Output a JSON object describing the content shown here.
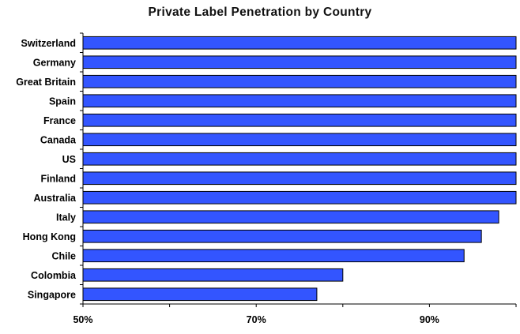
{
  "chart_data": {
    "type": "bar",
    "orientation": "horizontal",
    "title": "Private Label Penetration by Country",
    "categories": [
      "Switzerland",
      "Germany",
      "Great Britain",
      "Spain",
      "France",
      "Canada",
      "US",
      "Finland",
      "Australia",
      "Italy",
      "Hong Kong",
      "Chile",
      "Colombia",
      "Singapore"
    ],
    "values": [
      100,
      100,
      100,
      100,
      100,
      100,
      100,
      100,
      100,
      98,
      96,
      94,
      80,
      77
    ],
    "xlim": [
      50,
      100
    ],
    "x_ticks": [
      50,
      70,
      90
    ],
    "x_tick_labels": [
      "50%",
      "70%",
      "90%"
    ],
    "xlabel": "",
    "ylabel": "",
    "grid": false,
    "bar_color": "#3355ff"
  }
}
